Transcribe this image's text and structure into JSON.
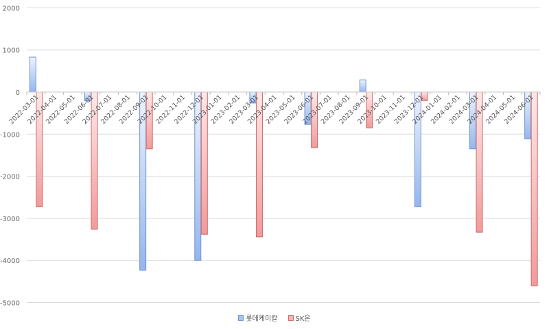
{
  "chart_data": {
    "type": "bar",
    "title": "",
    "xlabel": "",
    "ylabel": "",
    "ylim": [
      -5000,
      2000
    ],
    "yticks": [
      2000,
      1000,
      0,
      -1000,
      -2000,
      -3000,
      -4000,
      -5000
    ],
    "grid": true,
    "legend_position": "bottom",
    "categories": [
      "2022-03-01",
      "2022-04-01",
      "2022-05-01",
      "2022-06-01",
      "2022-07-01",
      "2022-08-01",
      "2022-09-01",
      "2022-10-01",
      "2022-11-01",
      "2022-12-01",
      "2023-01-01",
      "2023-02-01",
      "2023-03-01",
      "2023-04-01",
      "2023-05-01",
      "2023-06-01",
      "2023-07-01",
      "2023-08-01",
      "2023-09-01",
      "2023-10-01",
      "2023-11-01",
      "2023-12-01",
      "2024-01-01",
      "2024-02-01",
      "2024-03-01",
      "2024-04-01",
      "2024-05-01",
      "2024-06-01"
    ],
    "series": [
      {
        "name": "롯데케미칼",
        "color": "#8fb3ee",
        "values": [
          830,
          null,
          null,
          -210,
          null,
          null,
          -4230,
          null,
          null,
          -4000,
          null,
          null,
          -260,
          null,
          null,
          -770,
          null,
          null,
          290,
          null,
          null,
          -2720,
          null,
          null,
          -1350,
          null,
          null,
          -1110
        ]
      },
      {
        "name": "SK온",
        "color": "#f19a9a",
        "values": [
          -2720,
          null,
          null,
          -3260,
          null,
          null,
          -1350,
          null,
          null,
          -3380,
          null,
          null,
          -3440,
          null,
          null,
          -1320,
          null,
          null,
          -850,
          null,
          null,
          -200,
          null,
          null,
          -3330,
          null,
          null,
          -4600
        ]
      }
    ]
  },
  "legend": {
    "items": [
      {
        "label": "롯데케미칼",
        "color": "#8fb3ee"
      },
      {
        "label": "SK온",
        "color": "#f19a9a"
      }
    ]
  }
}
